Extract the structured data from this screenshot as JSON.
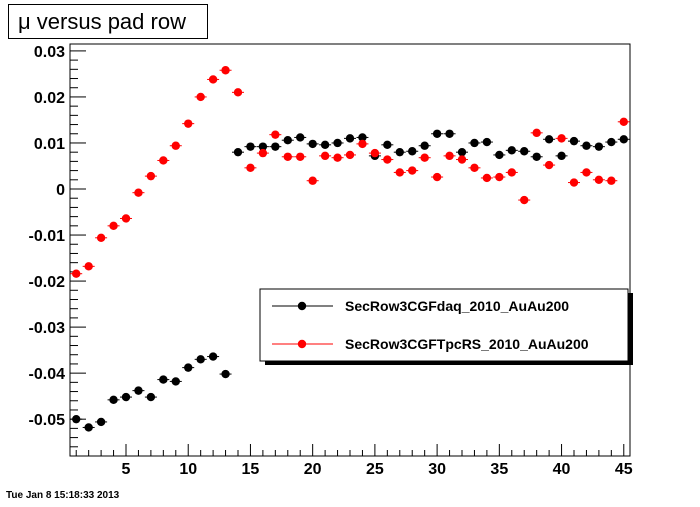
{
  "timestamp": "Tue Jan  8 15:18:33 2013",
  "chart_data": {
    "type": "scatter",
    "title": "μ versus pad row",
    "xlabel": "",
    "ylabel": "",
    "xlim": [
      0.5,
      45.5
    ],
    "ylim": [
      -0.058,
      0.0315
    ],
    "grid": false,
    "legend_position": "right-middle",
    "x_ticks": [
      5,
      10,
      15,
      20,
      25,
      30,
      35,
      40,
      45
    ],
    "x_tick_labels": [
      "5",
      "10",
      "15",
      "20",
      "25",
      "30",
      "35",
      "40",
      "45"
    ],
    "y_ticks": [
      -0.05,
      -0.04,
      -0.03,
      -0.02,
      -0.01,
      0,
      0.01,
      0.02,
      0.03
    ],
    "y_tick_labels": [
      "-0.05",
      "-0.04",
      "-0.03",
      "-0.02",
      "-0.01",
      "0",
      "0.01",
      "0.02",
      "0.03"
    ],
    "x": [
      1,
      2,
      3,
      4,
      5,
      6,
      7,
      8,
      9,
      10,
      11,
      12,
      13,
      14,
      15,
      16,
      17,
      18,
      19,
      20,
      21,
      22,
      23,
      24,
      25,
      26,
      27,
      28,
      29,
      30,
      31,
      32,
      33,
      34,
      35,
      36,
      37,
      38,
      39,
      40,
      41,
      42,
      43,
      44,
      45
    ],
    "series": [
      {
        "name": "SecRow3CGFdaq_2010_AuAu200",
        "color": "#000000",
        "values": [
          -0.05,
          -0.0518,
          -0.0506,
          -0.0458,
          -0.0452,
          -0.0438,
          -0.0452,
          -0.0414,
          -0.0418,
          -0.0388,
          -0.037,
          -0.0364,
          -0.0402,
          0.008,
          0.0092,
          0.0092,
          0.0092,
          0.0106,
          0.0112,
          0.0098,
          0.0096,
          0.01,
          0.011,
          0.0112,
          0.0072,
          0.0096,
          0.008,
          0.0082,
          0.0094,
          0.012,
          0.012,
          0.008,
          0.01,
          0.0102,
          0.0074,
          0.0084,
          0.0082,
          0.007,
          0.0108,
          0.0072,
          0.0104,
          0.0094,
          0.0092,
          0.0102,
          0.0108
        ]
      },
      {
        "name": "SecRow3CGFTpcRS_2010_AuAu200",
        "color": "#ff0000",
        "values": [
          -0.0184,
          -0.0168,
          -0.0106,
          -0.008,
          -0.0064,
          -0.0008,
          0.0028,
          0.0062,
          0.0094,
          0.0142,
          0.02,
          0.0238,
          0.0258,
          0.021,
          0.0046,
          0.0078,
          0.0118,
          0.007,
          0.007,
          0.0018,
          0.0072,
          0.0068,
          0.0074,
          0.0098,
          0.0078,
          0.0064,
          0.0036,
          0.004,
          0.0068,
          0.0026,
          0.0072,
          0.0064,
          0.0046,
          0.0024,
          0.0026,
          0.0036,
          -0.0024,
          0.0122,
          0.0052,
          0.011,
          0.0014,
          0.0036,
          0.002,
          0.0018,
          0.0146
        ]
      }
    ]
  }
}
